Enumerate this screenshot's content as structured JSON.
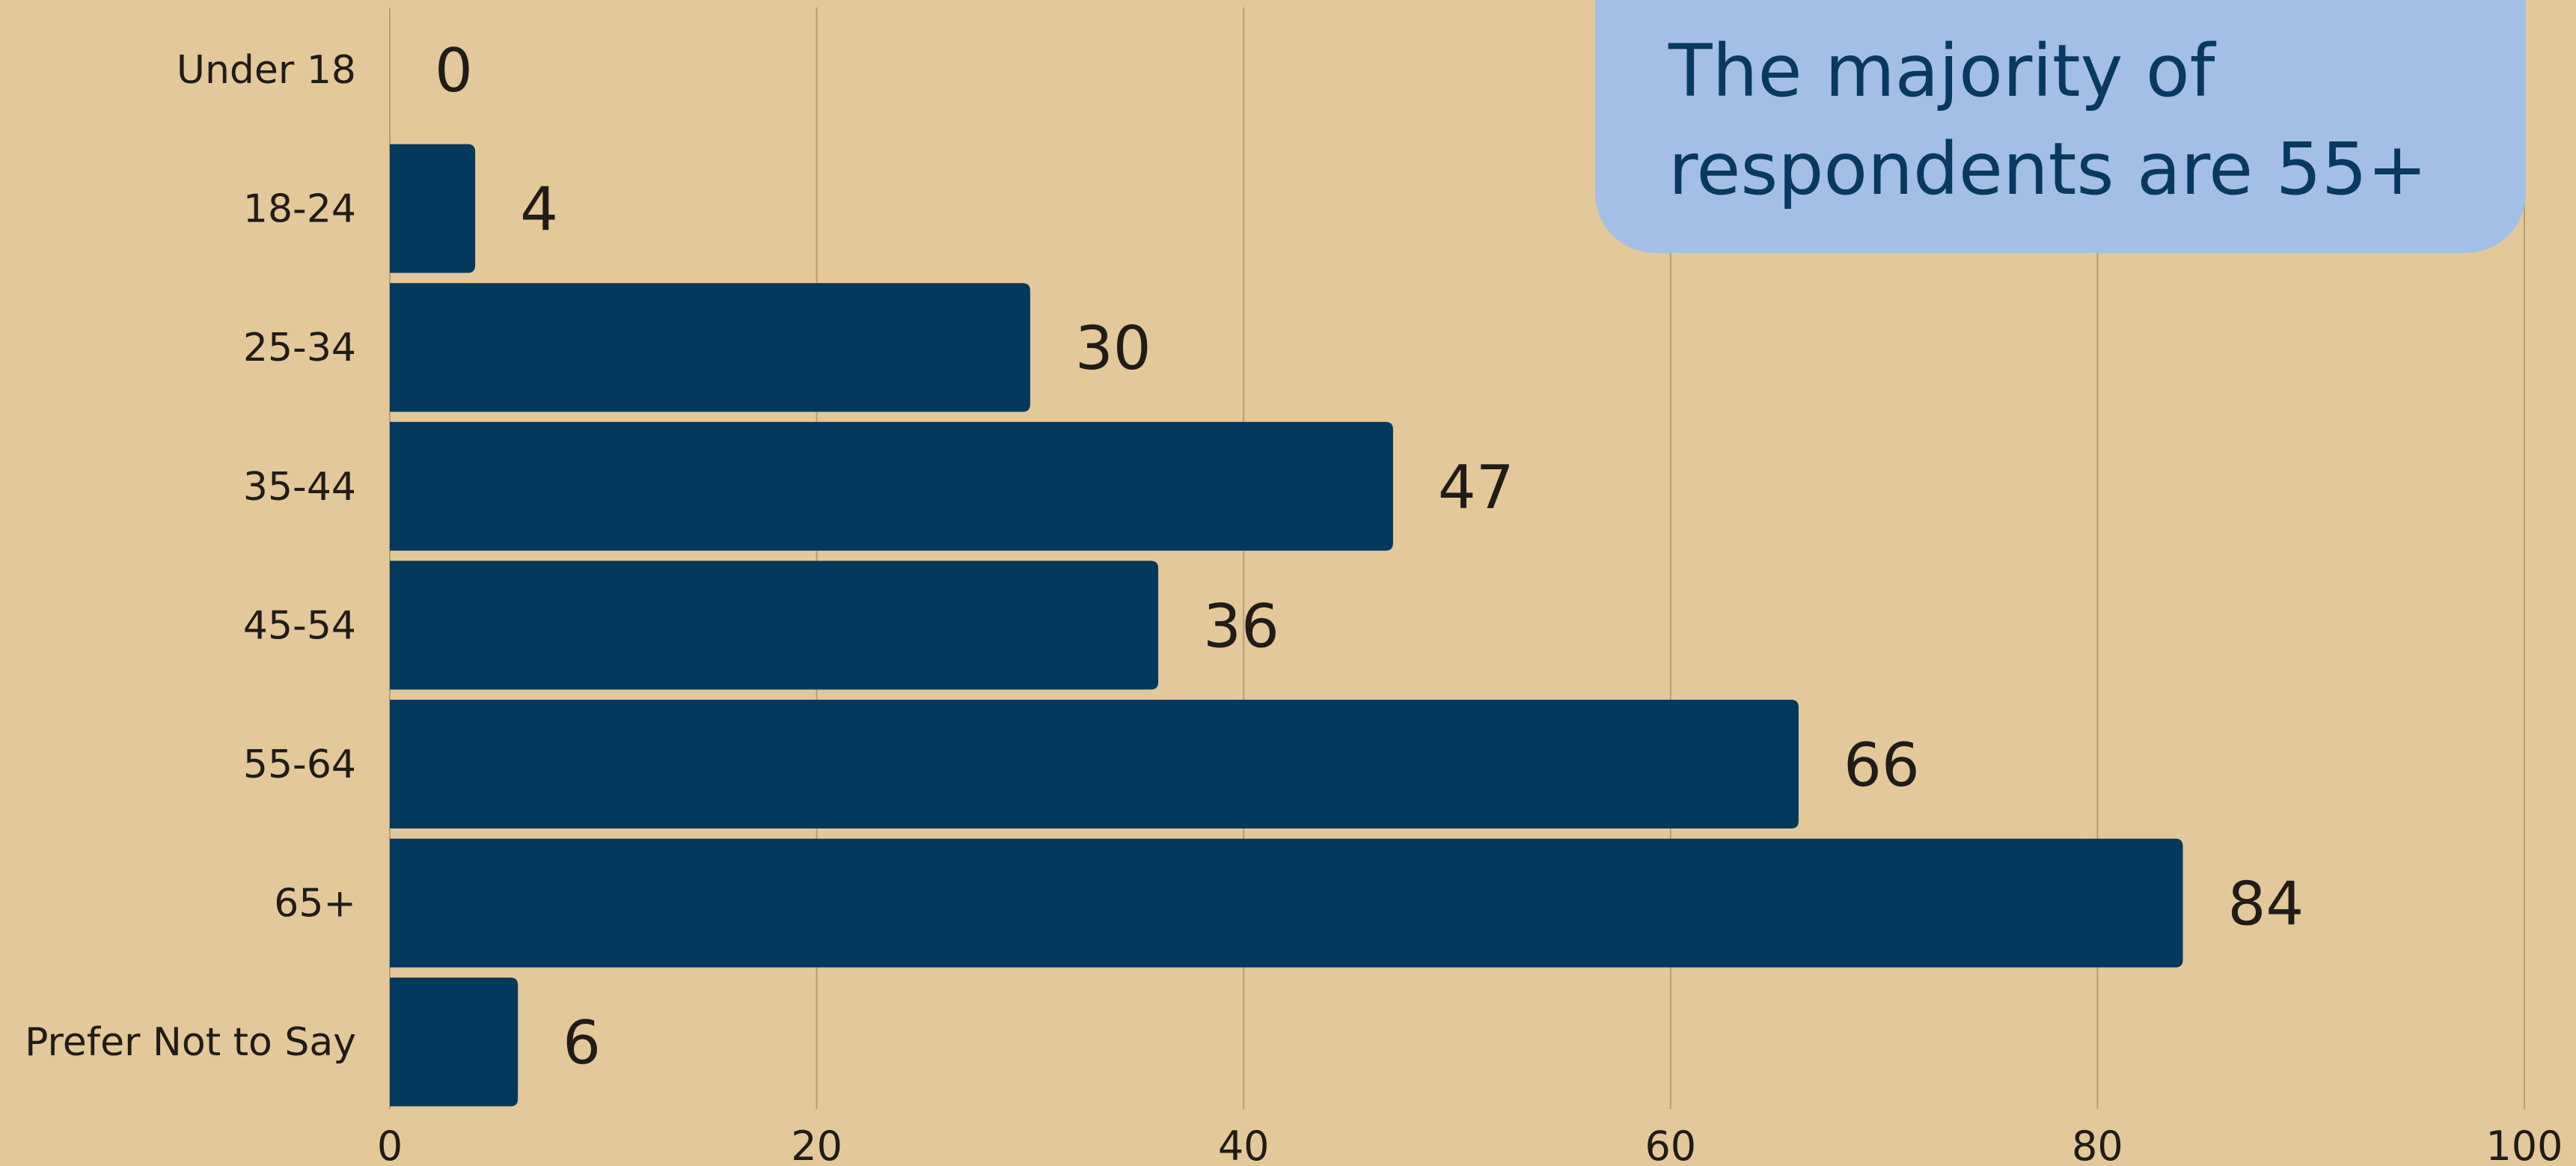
{
  "chart_data": {
    "type": "bar",
    "orientation": "horizontal",
    "categories": [
      "Under 18",
      "18-24",
      "25-34",
      "35-44",
      "45-54",
      "55-64",
      "65+",
      "Prefer Not to Say"
    ],
    "values": [
      0,
      4,
      30,
      47,
      36,
      66,
      84,
      6
    ],
    "data_labels": [
      "0",
      "4",
      "30",
      "47",
      "36",
      "66",
      "84",
      "6"
    ],
    "xlim": [
      0,
      100
    ],
    "x_ticks": [
      0,
      20,
      40,
      60,
      80,
      100
    ],
    "grid": true,
    "title": "",
    "xlabel": "",
    "ylabel": ""
  },
  "callout": {
    "line1": "The majority of",
    "line2": "respondents are 55+"
  },
  "colors": {
    "background": "#e3c899",
    "bar": "#04395e",
    "gridline": "#b39e7c",
    "callout_bg": "#a3bfe6",
    "callout_text": "#08395e",
    "label_text": "#1f1c19"
  }
}
